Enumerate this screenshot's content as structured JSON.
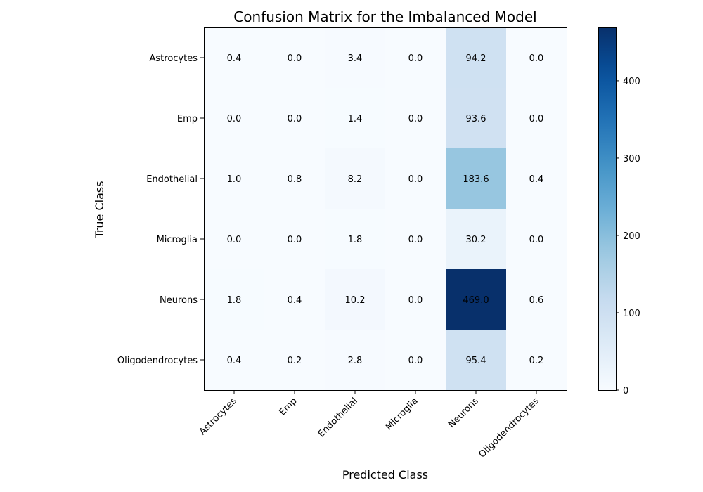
{
  "chart_data": {
    "type": "heatmap",
    "title": "Confusion Matrix for the Imbalanced Model",
    "xlabel": "Predicted Class",
    "ylabel": "True Class",
    "x_categories": [
      "Astrocytes",
      "Emp",
      "Endothelial",
      "Microglia",
      "Neurons",
      "Oligodendrocytes"
    ],
    "y_categories": [
      "Astrocytes",
      "Emp",
      "Endothelial",
      "Microglia",
      "Neurons",
      "Oligodendrocytes"
    ],
    "values": [
      [
        0.4,
        0.0,
        3.4,
        0.0,
        94.2,
        0.0
      ],
      [
        0.0,
        0.0,
        1.4,
        0.0,
        93.6,
        0.0
      ],
      [
        1.0,
        0.8,
        8.2,
        0.0,
        183.6,
        0.4
      ],
      [
        0.0,
        0.0,
        1.8,
        0.0,
        30.2,
        0.0
      ],
      [
        1.8,
        0.4,
        10.2,
        0.0,
        469.0,
        0.6
      ],
      [
        0.4,
        0.2,
        2.8,
        0.0,
        95.4,
        0.2
      ]
    ],
    "cell_labels": [
      [
        "0.4",
        "0.0",
        "3.4",
        "0.0",
        "94.2",
        "0.0"
      ],
      [
        "0.0",
        "0.0",
        "1.4",
        "0.0",
        "93.6",
        "0.0"
      ],
      [
        "1.0",
        "0.8",
        "8.2",
        "0.0",
        "183.6",
        "0.4"
      ],
      [
        "0.0",
        "0.0",
        "1.8",
        "0.0",
        "30.2",
        "0.0"
      ],
      [
        "1.8",
        "0.4",
        "10.2",
        "0.0",
        "469.0",
        "0.6"
      ],
      [
        "0.4",
        "0.2",
        "2.8",
        "0.0",
        "95.4",
        "0.2"
      ]
    ],
    "colormap": "Blues",
    "color_range": [
      0,
      469.0
    ],
    "colorbar_ticks": [
      0,
      100,
      200,
      300,
      400
    ],
    "colorbar_tick_labels": [
      "0",
      "100",
      "200",
      "300",
      "400"
    ],
    "grid": false
  }
}
